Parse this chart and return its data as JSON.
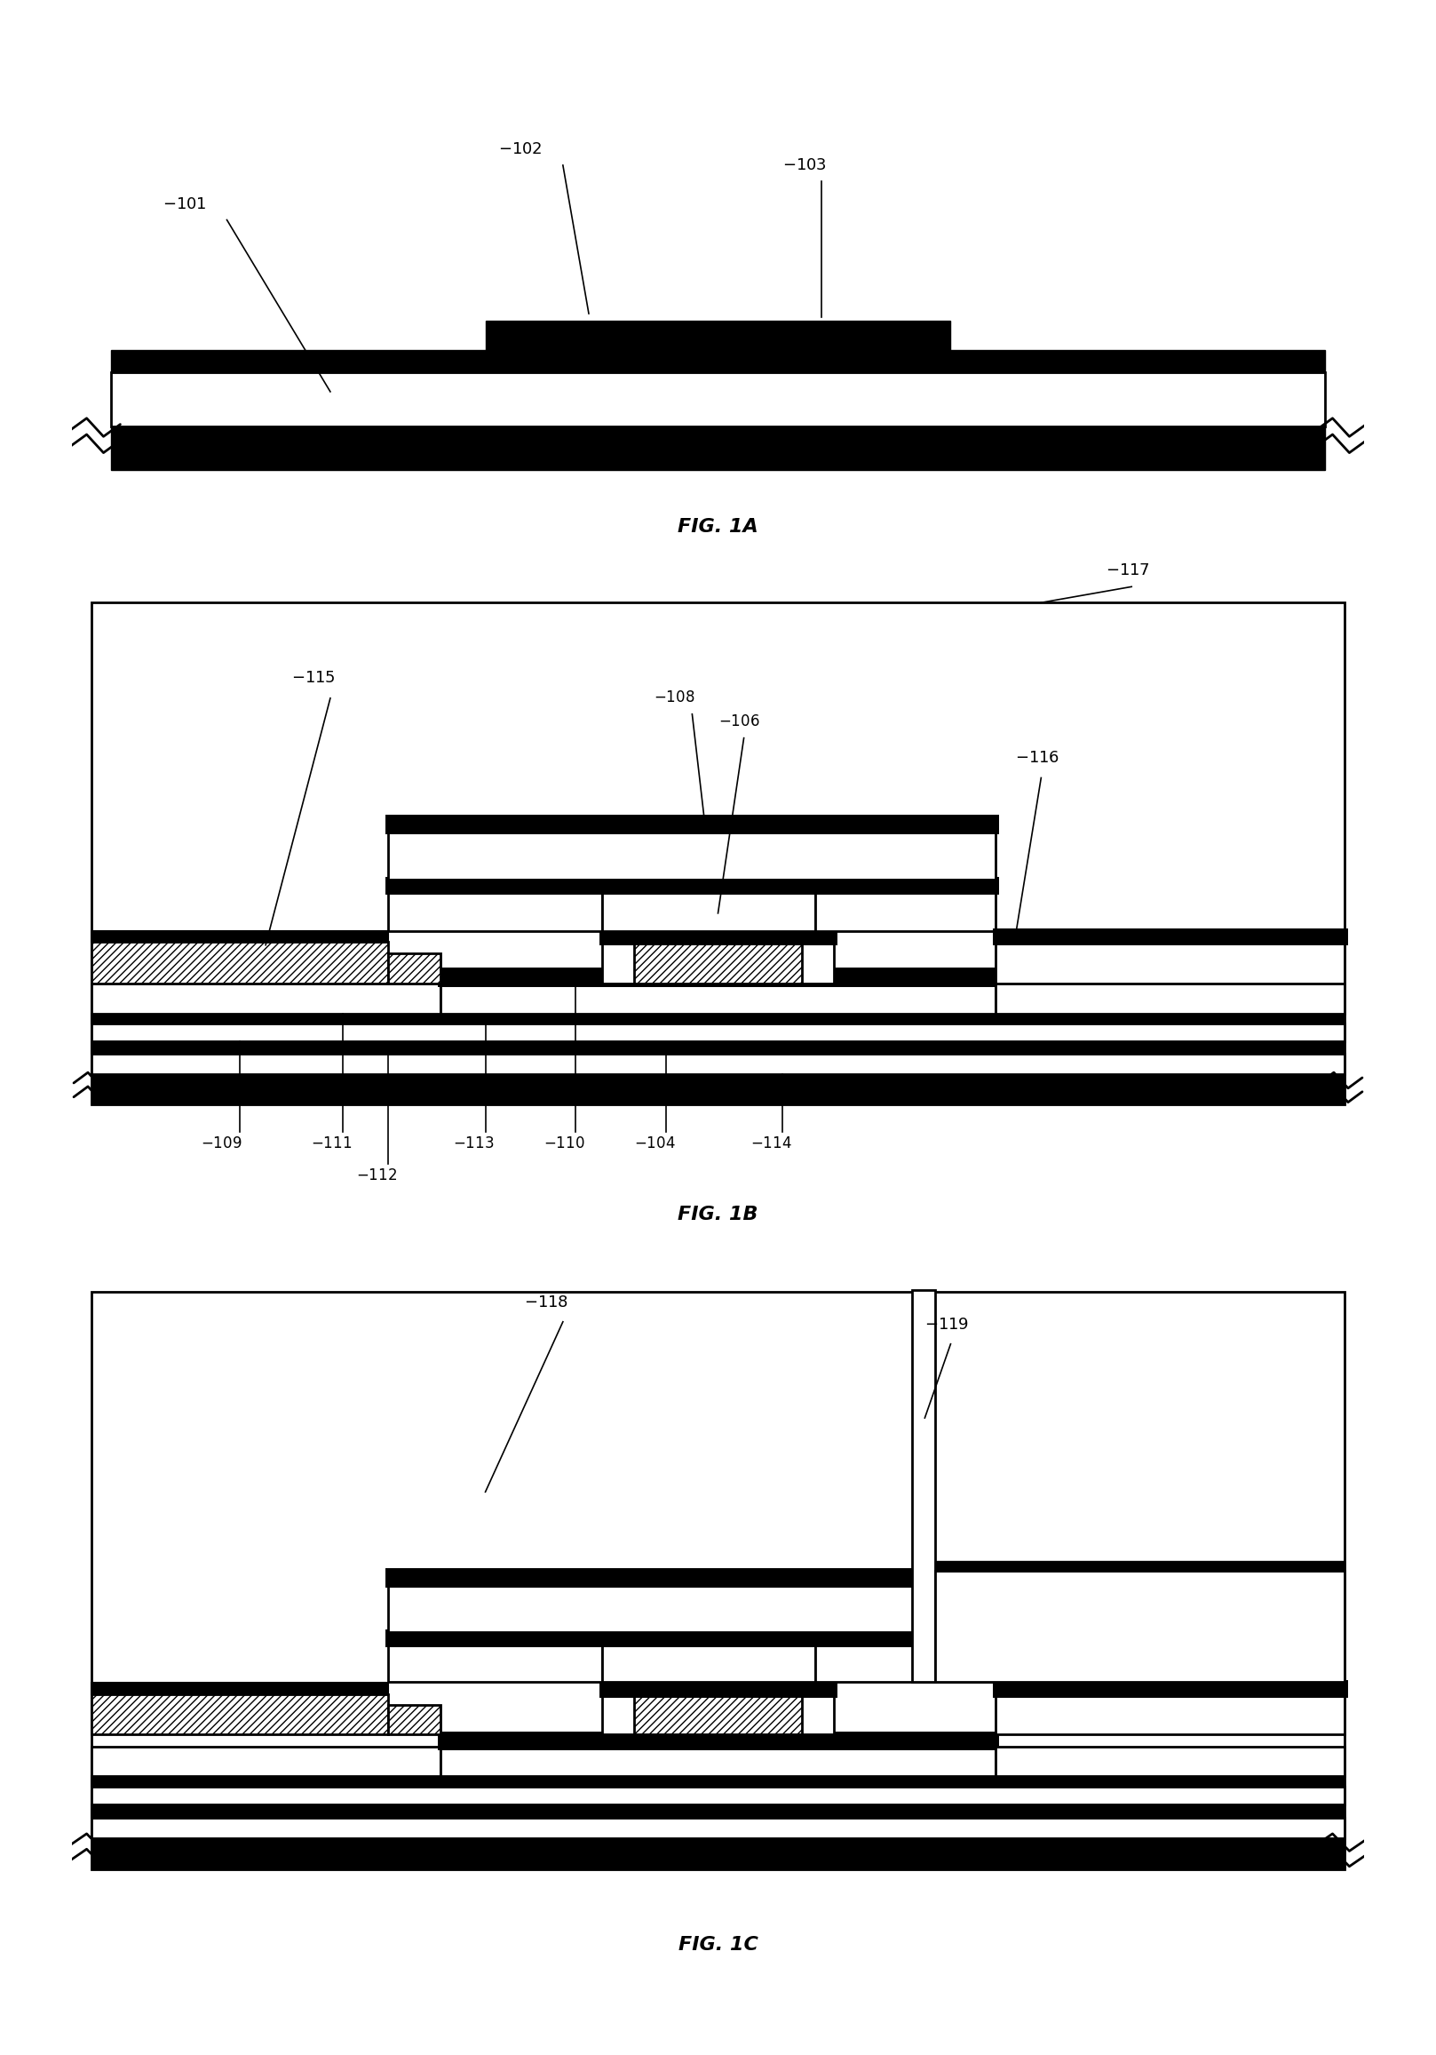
{
  "bg_color": "#ffffff",
  "lw": 2.0,
  "lw_thick": 5.0,
  "hatch": "////",
  "fig1a_label": "FIG. 1A",
  "fig1b_label": "FIG. 1B",
  "fig1c_label": "FIG. 1C"
}
